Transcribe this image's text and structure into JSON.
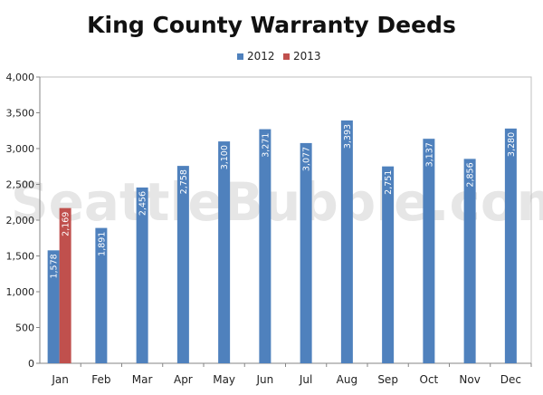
{
  "chart_data": {
    "type": "bar",
    "title": "King County Warranty Deeds",
    "xlabel": "",
    "ylabel": "",
    "ylim": [
      0,
      4000
    ],
    "yticks": [
      0,
      500,
      1000,
      1500,
      2000,
      2500,
      3000,
      3500,
      4000
    ],
    "ytick_labels": [
      "0",
      "500",
      "1,000",
      "1,500",
      "2,000",
      "2,500",
      "3,000",
      "3,500",
      "4,000"
    ],
    "categories": [
      "Jan",
      "Feb",
      "Mar",
      "Apr",
      "May",
      "Jun",
      "Jul",
      "Aug",
      "Sep",
      "Oct",
      "Nov",
      "Dec"
    ],
    "series": [
      {
        "name": "2012",
        "color": "#4f81bd",
        "values": [
          1578,
          1891,
          2456,
          2758,
          3100,
          3271,
          3077,
          3393,
          2751,
          3137,
          2856,
          3280
        ],
        "labels": [
          "1,578",
          "1,891",
          "2,456",
          "2,758",
          "3,100",
          "3,271",
          "3,077",
          "3,393",
          "2,751",
          "3,137",
          "2,856",
          "3,280"
        ]
      },
      {
        "name": "2013",
        "color": "#c0504d",
        "values": [
          2169,
          null,
          null,
          null,
          null,
          null,
          null,
          null,
          null,
          null,
          null,
          null
        ],
        "labels": [
          "2,169",
          null,
          null,
          null,
          null,
          null,
          null,
          null,
          null,
          null,
          null,
          null
        ]
      }
    ],
    "legend_position": "top-center",
    "grid": "none",
    "watermark": "SeattleBubble.com"
  }
}
